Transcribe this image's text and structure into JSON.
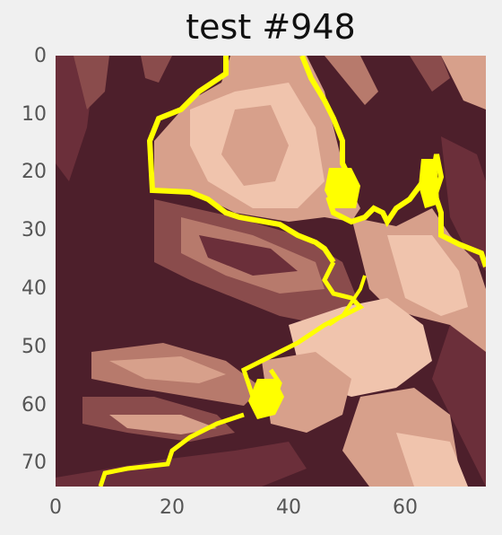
{
  "title": "test #948",
  "y_ticks": [
    "0",
    "10",
    "20",
    "30",
    "40",
    "50",
    "60",
    "70"
  ],
  "x_ticks": [
    "0",
    "20",
    "40",
    "60"
  ],
  "colors": {
    "dark": "#4d1f2b",
    "mid_dark": "#6b2f3a",
    "mid": "#8a4c4c",
    "tan": "#b77a6c",
    "light": "#d7a08b",
    "lightest": "#f0c4ad",
    "contour": "#ffff00",
    "background": "#f0f0f0"
  }
}
